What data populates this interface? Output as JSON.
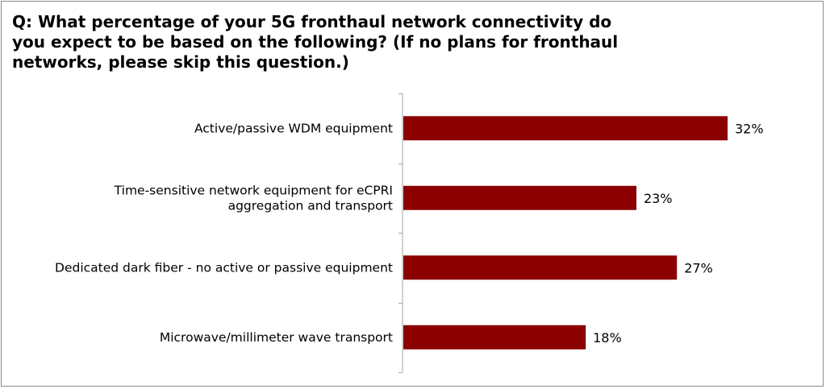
{
  "chart_data": {
    "type": "bar",
    "orientation": "horizontal",
    "title": "Q: What percentage of your 5G fronthaul network connectivity do\nyou expect to be based on the following? (If no plans for fronthaul\nnetworks, please skip this question.)",
    "categories": [
      [
        "Active/passive WDM equipment"
      ],
      [
        "Time-sensitive network equipment for eCPRI",
        "aggregation and transport"
      ],
      [
        "Dedicated dark fiber - no active or passive equipment"
      ],
      [
        "Microwave/millimeter wave transport"
      ]
    ],
    "values": [
      32,
      23,
      27,
      18
    ],
    "value_labels": [
      "32%",
      "23%",
      "27%",
      "18%"
    ],
    "xlim": [
      0,
      32
    ],
    "bar_color": "#8b0000",
    "axis_color": "#a6a6a6",
    "grid": false,
    "legend": "none"
  }
}
